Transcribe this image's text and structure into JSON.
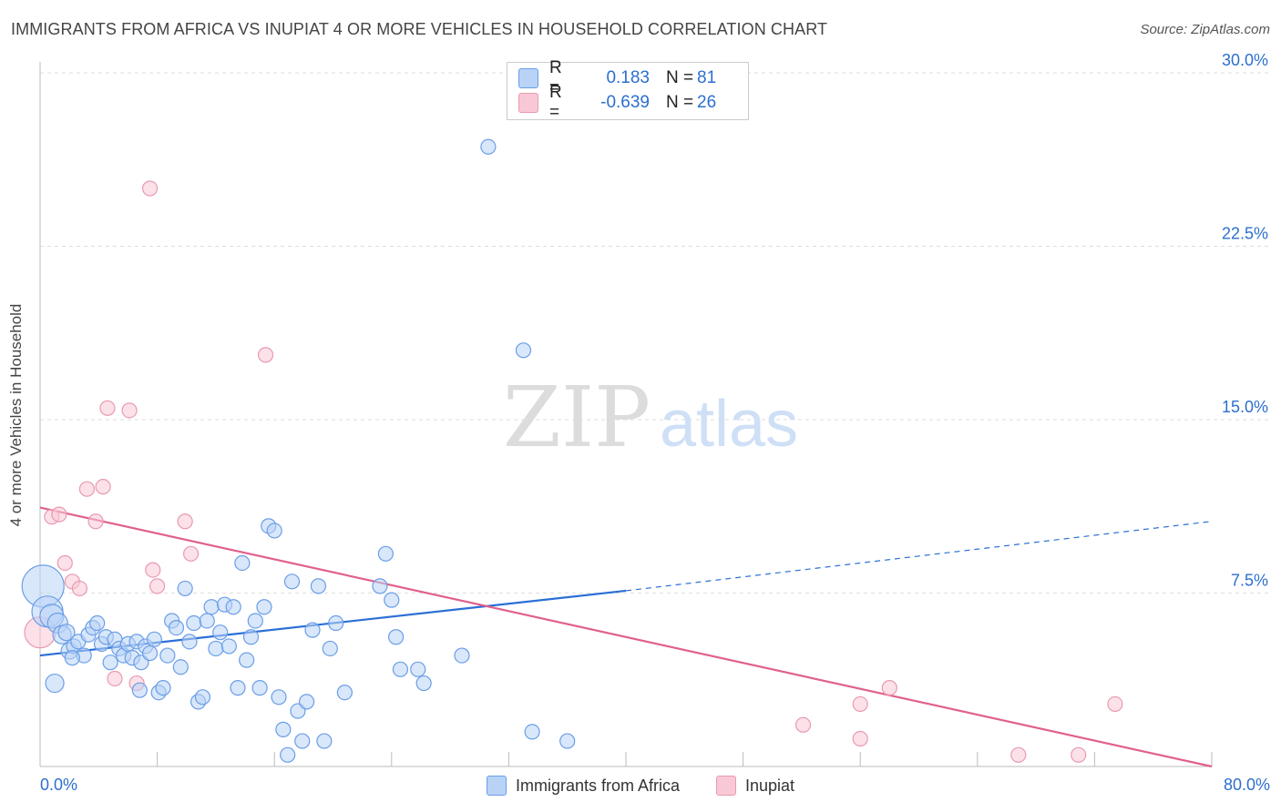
{
  "title": "IMMIGRANTS FROM AFRICA VS INUPIAT 4 OR MORE VEHICLES IN HOUSEHOLD CORRELATION CHART",
  "source": "Source: ZipAtlas.com",
  "watermark": {
    "zip": "ZIP",
    "atlas": "atlas"
  },
  "colors": {
    "blue_fill": "#b9d3f7",
    "blue_stroke": "#6a9ee6",
    "blue_line": "#2b6fd6",
    "pink_fill": "#f9c8d6",
    "pink_stroke": "#e89ab2",
    "pink_line": "#e0608d",
    "tick_text": "#2c6fcf",
    "grid": "#dddddd"
  },
  "legend_stats": [
    {
      "r_label": "R =",
      "r_value": "0.183",
      "n_label": "N =",
      "n_value": "81"
    },
    {
      "r_label": "R =",
      "r_value": "-0.639",
      "n_label": "N =",
      "n_value": "26"
    }
  ],
  "chart_data": {
    "type": "scatter",
    "xlabel": "",
    "ylabel": "4 or more Vehicles in Household",
    "xlim": [
      0,
      80
    ],
    "ylim": [
      0,
      30
    ],
    "x_tick_labels": [
      "0.0%",
      "80.0%"
    ],
    "y_ticks": [
      7.5,
      15.0,
      22.5,
      30.0
    ],
    "y_tick_labels": [
      "7.5%",
      "15.0%",
      "22.5%",
      "30.0%"
    ],
    "series": [
      {
        "name": "Immigrants from Africa",
        "r": 0.183,
        "n": 81,
        "trend": {
          "x0": 0,
          "y0": 4.8,
          "x1": 40,
          "y1": 7.6,
          "dash_to_x": 80,
          "dash_to_y": 10.6
        },
        "points": [
          [
            0.2,
            7.8,
            22
          ],
          [
            0.5,
            6.7,
            16
          ],
          [
            0.8,
            6.5,
            12
          ],
          [
            1.2,
            6.2,
            10
          ],
          [
            1.5,
            5.7,
            9
          ],
          [
            1.8,
            5.8,
            8
          ],
          [
            2.0,
            5.0,
            8
          ],
          [
            2.3,
            5.2,
            7
          ],
          [
            2.6,
            5.4,
            7
          ],
          [
            3.0,
            4.8,
            7
          ],
          [
            3.3,
            5.7,
            7
          ],
          [
            3.6,
            6.0,
            7
          ],
          [
            3.9,
            6.2,
            7
          ],
          [
            4.2,
            5.3,
            7
          ],
          [
            4.5,
            5.6,
            7
          ],
          [
            4.8,
            4.5,
            7
          ],
          [
            5.1,
            5.5,
            7
          ],
          [
            5.4,
            5.1,
            7
          ],
          [
            5.7,
            4.8,
            7
          ],
          [
            6.0,
            5.3,
            7
          ],
          [
            6.3,
            4.7,
            7
          ],
          [
            6.6,
            5.4,
            7
          ],
          [
            6.9,
            4.5,
            7
          ],
          [
            7.2,
            5.2,
            7
          ],
          [
            7.5,
            4.9,
            7
          ],
          [
            7.8,
            5.5,
            7
          ],
          [
            8.1,
            3.2,
            7
          ],
          [
            8.4,
            3.4,
            7
          ],
          [
            8.7,
            4.8,
            7
          ],
          [
            9.0,
            6.3,
            7
          ],
          [
            9.3,
            6.0,
            7
          ],
          [
            9.6,
            4.3,
            7
          ],
          [
            9.9,
            7.7,
            7
          ],
          [
            10.2,
            5.4,
            7
          ],
          [
            10.5,
            6.2,
            7
          ],
          [
            10.8,
            2.8,
            7
          ],
          [
            11.1,
            3.0,
            7
          ],
          [
            11.4,
            6.3,
            7
          ],
          [
            11.7,
            6.9,
            7
          ],
          [
            12.0,
            5.1,
            7
          ],
          [
            12.3,
            5.8,
            7
          ],
          [
            12.6,
            7.0,
            7
          ],
          [
            12.9,
            5.2,
            7
          ],
          [
            13.2,
            6.9,
            7
          ],
          [
            13.5,
            3.4,
            7
          ],
          [
            13.8,
            8.8,
            7
          ],
          [
            14.1,
            4.6,
            7
          ],
          [
            14.4,
            5.6,
            7
          ],
          [
            14.7,
            6.3,
            7
          ],
          [
            15.0,
            3.4,
            7
          ],
          [
            15.3,
            6.9,
            7
          ],
          [
            15.6,
            10.4,
            7
          ],
          [
            16.0,
            10.2,
            7
          ],
          [
            16.3,
            3.0,
            7
          ],
          [
            16.6,
            1.6,
            7
          ],
          [
            16.9,
            0.5,
            7
          ],
          [
            17.2,
            8.0,
            7
          ],
          [
            17.6,
            2.4,
            7
          ],
          [
            17.9,
            1.1,
            7
          ],
          [
            18.2,
            2.8,
            7
          ],
          [
            18.6,
            5.9,
            7
          ],
          [
            19.0,
            7.8,
            7
          ],
          [
            19.4,
            1.1,
            7
          ],
          [
            19.8,
            5.1,
            7
          ],
          [
            20.2,
            6.2,
            7
          ],
          [
            20.8,
            3.2,
            7
          ],
          [
            23.2,
            7.8,
            7
          ],
          [
            23.6,
            9.2,
            7
          ],
          [
            24.0,
            7.2,
            7
          ],
          [
            24.3,
            5.6,
            7
          ],
          [
            24.6,
            4.2,
            7
          ],
          [
            25.8,
            4.2,
            7
          ],
          [
            26.2,
            3.6,
            7
          ],
          [
            28.8,
            4.8,
            7
          ],
          [
            30.6,
            26.8,
            7
          ],
          [
            33.0,
            18.0,
            7
          ],
          [
            33.6,
            1.5,
            7
          ],
          [
            36.0,
            1.1,
            7
          ],
          [
            1.0,
            3.6,
            9
          ],
          [
            2.2,
            4.7,
            7
          ],
          [
            6.8,
            3.3,
            7
          ]
        ]
      },
      {
        "name": "Inupiat",
        "r": -0.639,
        "n": 26,
        "trend": {
          "x0": 0,
          "y0": 11.2,
          "x1": 80,
          "y1": 0
        },
        "points": [
          [
            0.0,
            5.8,
            16
          ],
          [
            0.8,
            10.8,
            7
          ],
          [
            1.3,
            10.9,
            7
          ],
          [
            1.7,
            8.8,
            7
          ],
          [
            2.2,
            8.0,
            7
          ],
          [
            2.7,
            7.7,
            7
          ],
          [
            3.2,
            12.0,
            7
          ],
          [
            3.8,
            10.6,
            7
          ],
          [
            4.3,
            12.1,
            7
          ],
          [
            4.6,
            15.5,
            7
          ],
          [
            5.1,
            3.8,
            7
          ],
          [
            6.1,
            15.4,
            7
          ],
          [
            6.6,
            3.6,
            7
          ],
          [
            7.5,
            25.0,
            7
          ],
          [
            7.7,
            8.5,
            7
          ],
          [
            8.0,
            7.8,
            7
          ],
          [
            9.9,
            10.6,
            7
          ],
          [
            10.3,
            9.2,
            7
          ],
          [
            15.4,
            17.8,
            7
          ],
          [
            52.1,
            1.8,
            7
          ],
          [
            56.0,
            2.7,
            7
          ],
          [
            56.0,
            1.2,
            7
          ],
          [
            58.0,
            3.4,
            7
          ],
          [
            66.8,
            0.5,
            7
          ],
          [
            70.9,
            0.5,
            7
          ],
          [
            73.4,
            2.7,
            7
          ]
        ]
      }
    ]
  }
}
